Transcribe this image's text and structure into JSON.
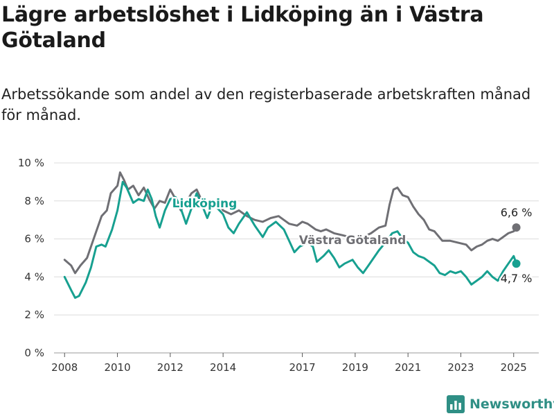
{
  "title": "Lägre arbetslöshet i Lidköping än i Västra Götaland",
  "subtitle": "Arbetssökande som andel av den registerbaserade arbetskraften månad för månad.",
  "brand": "Newsworthy",
  "colors": {
    "lidkoping": "#17a090",
    "vastra": "#6f6f74",
    "grid": "#dcdcdc",
    "brand": "#2f8f85"
  },
  "chart_data": {
    "type": "line",
    "ylim": [
      0,
      10
    ],
    "yticks": [
      0,
      2,
      4,
      6,
      8,
      10
    ],
    "ytick_labels": [
      "0 %",
      "2 %",
      "4 %",
      "6 %",
      "8 %",
      "10 %"
    ],
    "xlim": [
      2007.6,
      2025.95
    ],
    "xticks": [
      2008,
      2010,
      2012,
      2014,
      2017,
      2019,
      2021,
      2023,
      2025
    ],
    "xtick_labels": [
      "2008",
      "2010",
      "2012",
      "2014",
      "2017",
      "2019",
      "2021",
      "2023",
      "2025"
    ],
    "grid": true,
    "series": [
      {
        "name": "Västra Götaland",
        "color": "#6f6f74",
        "points": [
          [
            2008.0,
            4.9
          ],
          [
            2008.25,
            4.6
          ],
          [
            2008.4,
            4.2
          ],
          [
            2008.6,
            4.6
          ],
          [
            2008.85,
            5.0
          ],
          [
            2009.1,
            6.0
          ],
          [
            2009.4,
            7.2
          ],
          [
            2009.6,
            7.5
          ],
          [
            2009.75,
            8.4
          ],
          [
            2010.0,
            8.8
          ],
          [
            2010.1,
            9.5
          ],
          [
            2010.25,
            9.1
          ],
          [
            2010.4,
            8.6
          ],
          [
            2010.6,
            8.8
          ],
          [
            2010.8,
            8.3
          ],
          [
            2011.0,
            8.7
          ],
          [
            2011.2,
            8.1
          ],
          [
            2011.4,
            7.6
          ],
          [
            2011.6,
            8.0
          ],
          [
            2011.8,
            7.9
          ],
          [
            2012.0,
            8.6
          ],
          [
            2012.2,
            8.1
          ],
          [
            2012.4,
            7.5
          ],
          [
            2012.6,
            7.9
          ],
          [
            2012.8,
            8.4
          ],
          [
            2013.0,
            8.6
          ],
          [
            2013.2,
            8.0
          ],
          [
            2013.4,
            7.7
          ],
          [
            2013.6,
            7.9
          ],
          [
            2013.8,
            8.0
          ],
          [
            2014.0,
            7.5
          ],
          [
            2014.3,
            7.3
          ],
          [
            2014.6,
            7.5
          ],
          [
            2014.9,
            7.2
          ],
          [
            2015.2,
            7.0
          ],
          [
            2015.5,
            6.9
          ],
          [
            2015.8,
            7.1
          ],
          [
            2016.1,
            7.2
          ],
          [
            2016.3,
            7.0
          ],
          [
            2016.5,
            6.8
          ],
          [
            2016.8,
            6.7
          ],
          [
            2017.0,
            6.9
          ],
          [
            2017.2,
            6.8
          ],
          [
            2017.5,
            6.5
          ],
          [
            2017.7,
            6.4
          ],
          [
            2017.9,
            6.5
          ],
          [
            2018.2,
            6.3
          ],
          [
            2018.5,
            6.2
          ],
          [
            2018.8,
            6.1
          ],
          [
            2019.0,
            6.0
          ],
          [
            2019.3,
            6.1
          ],
          [
            2019.6,
            6.3
          ],
          [
            2019.9,
            6.6
          ],
          [
            2020.15,
            6.7
          ],
          [
            2020.3,
            7.8
          ],
          [
            2020.45,
            8.6
          ],
          [
            2020.6,
            8.7
          ],
          [
            2020.8,
            8.3
          ],
          [
            2021.0,
            8.2
          ],
          [
            2021.2,
            7.7
          ],
          [
            2021.4,
            7.3
          ],
          [
            2021.6,
            7.0
          ],
          [
            2021.8,
            6.5
          ],
          [
            2022.0,
            6.4
          ],
          [
            2022.3,
            5.9
          ],
          [
            2022.6,
            5.9
          ],
          [
            2022.9,
            5.8
          ],
          [
            2023.2,
            5.7
          ],
          [
            2023.4,
            5.4
          ],
          [
            2023.6,
            5.6
          ],
          [
            2023.8,
            5.7
          ],
          [
            2024.0,
            5.9
          ],
          [
            2024.2,
            6.0
          ],
          [
            2024.4,
            5.9
          ],
          [
            2024.6,
            6.1
          ],
          [
            2024.8,
            6.3
          ],
          [
            2025.0,
            6.4
          ],
          [
            2025.1,
            6.6
          ]
        ],
        "end_value": 6.6,
        "end_label": "6,6 %"
      },
      {
        "name": "Lidköping",
        "color": "#17a090",
        "points": [
          [
            2008.0,
            4.0
          ],
          [
            2008.25,
            3.3
          ],
          [
            2008.4,
            2.9
          ],
          [
            2008.55,
            3.0
          ],
          [
            2008.8,
            3.7
          ],
          [
            2009.0,
            4.5
          ],
          [
            2009.2,
            5.6
          ],
          [
            2009.4,
            5.7
          ],
          [
            2009.55,
            5.6
          ],
          [
            2009.8,
            6.5
          ],
          [
            2010.0,
            7.5
          ],
          [
            2010.2,
            9.0
          ],
          [
            2010.35,
            8.7
          ],
          [
            2010.6,
            7.9
          ],
          [
            2010.8,
            8.1
          ],
          [
            2011.0,
            8.0
          ],
          [
            2011.15,
            8.6
          ],
          [
            2011.3,
            8.1
          ],
          [
            2011.45,
            7.2
          ],
          [
            2011.6,
            6.6
          ],
          [
            2011.8,
            7.5
          ],
          [
            2012.0,
            8.1
          ],
          [
            2012.2,
            8.2
          ],
          [
            2012.4,
            7.6
          ],
          [
            2012.6,
            6.8
          ],
          [
            2012.8,
            7.6
          ],
          [
            2013.0,
            8.4
          ],
          [
            2013.2,
            7.8
          ],
          [
            2013.4,
            7.1
          ],
          [
            2013.6,
            7.8
          ],
          [
            2013.8,
            7.6
          ],
          [
            2014.0,
            7.3
          ],
          [
            2014.2,
            6.6
          ],
          [
            2014.4,
            6.3
          ],
          [
            2014.6,
            6.8
          ],
          [
            2014.9,
            7.4
          ],
          [
            2015.2,
            6.7
          ],
          [
            2015.5,
            6.1
          ],
          [
            2015.7,
            6.6
          ],
          [
            2016.0,
            6.9
          ],
          [
            2016.3,
            6.5
          ],
          [
            2016.5,
            5.9
          ],
          [
            2016.7,
            5.3
          ],
          [
            2016.9,
            5.6
          ],
          [
            2017.2,
            5.8
          ],
          [
            2017.4,
            5.6
          ],
          [
            2017.55,
            4.8
          ],
          [
            2017.8,
            5.1
          ],
          [
            2018.0,
            5.4
          ],
          [
            2018.2,
            5.0
          ],
          [
            2018.4,
            4.5
          ],
          [
            2018.6,
            4.7
          ],
          [
            2018.9,
            4.9
          ],
          [
            2019.1,
            4.5
          ],
          [
            2019.3,
            4.2
          ],
          [
            2019.5,
            4.6
          ],
          [
            2019.7,
            5.0
          ],
          [
            2019.9,
            5.4
          ],
          [
            2020.2,
            5.9
          ],
          [
            2020.4,
            6.3
          ],
          [
            2020.6,
            6.4
          ],
          [
            2020.8,
            6.0
          ],
          [
            2021.0,
            5.8
          ],
          [
            2021.2,
            5.3
          ],
          [
            2021.4,
            5.1
          ],
          [
            2021.6,
            5.0
          ],
          [
            2021.8,
            4.8
          ],
          [
            2022.0,
            4.6
          ],
          [
            2022.2,
            4.2
          ],
          [
            2022.4,
            4.1
          ],
          [
            2022.6,
            4.3
          ],
          [
            2022.8,
            4.2
          ],
          [
            2023.0,
            4.3
          ],
          [
            2023.2,
            4.0
          ],
          [
            2023.4,
            3.6
          ],
          [
            2023.6,
            3.8
          ],
          [
            2023.8,
            4.0
          ],
          [
            2024.0,
            4.3
          ],
          [
            2024.2,
            4.0
          ],
          [
            2024.4,
            3.8
          ],
          [
            2024.6,
            4.3
          ],
          [
            2024.8,
            4.7
          ],
          [
            2025.0,
            5.1
          ],
          [
            2025.1,
            4.7
          ]
        ],
        "end_value": 4.7,
        "end_label": "4,7 %"
      }
    ]
  }
}
